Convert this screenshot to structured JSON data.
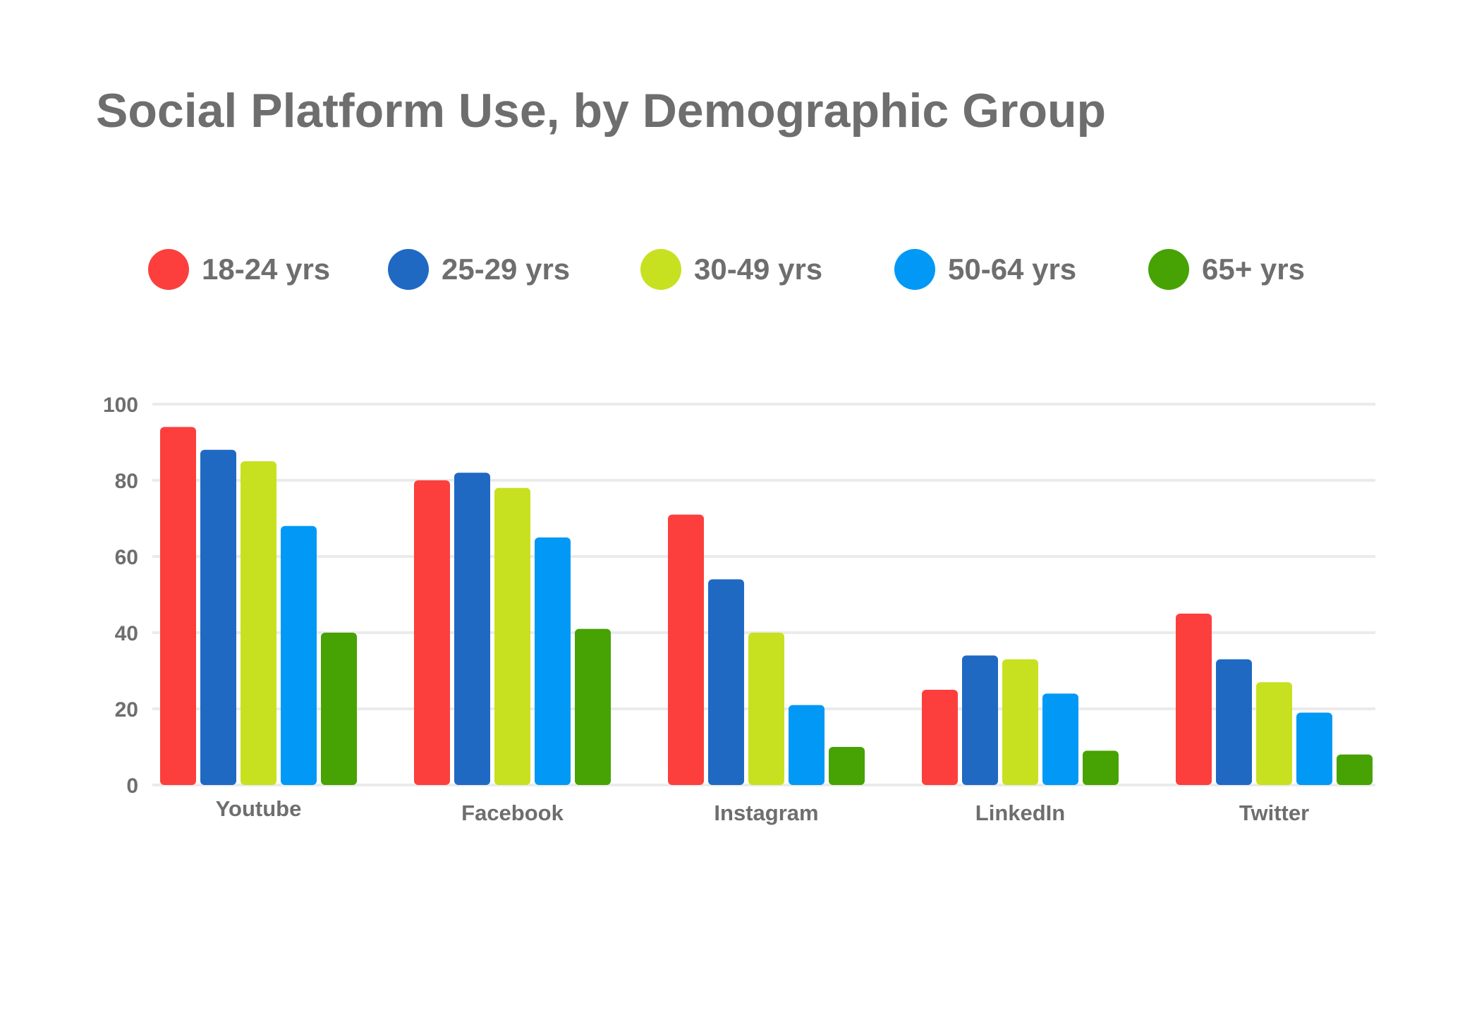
{
  "chart_data": {
    "type": "bar",
    "title": "Social Platform Use, by Demographic Group",
    "xlabel": "",
    "ylabel": "",
    "ylim": [
      0,
      100
    ],
    "yticks": [
      0,
      20,
      40,
      60,
      80,
      100
    ],
    "grid": true,
    "legend_position": "top",
    "categories": [
      "Youtube",
      "Facebook",
      "Instagram",
      "LinkedIn",
      "Twitter"
    ],
    "series": [
      {
        "name": "18-24 yrs",
        "color": "#fc3f3c",
        "values": [
          94,
          80,
          71,
          25,
          45
        ]
      },
      {
        "name": "25-29 yrs",
        "color": "#1f69c3",
        "values": [
          88,
          82,
          54,
          34,
          33
        ]
      },
      {
        "name": "30-49 yrs",
        "color": "#c7e120",
        "values": [
          85,
          78,
          40,
          33,
          27
        ]
      },
      {
        "name": "50-64 yrs",
        "color": "#0199f5",
        "values": [
          68,
          65,
          21,
          24,
          19
        ]
      },
      {
        "name": "65+ yrs",
        "color": "#47a203",
        "values": [
          40,
          41,
          10,
          9,
          8
        ]
      }
    ]
  }
}
